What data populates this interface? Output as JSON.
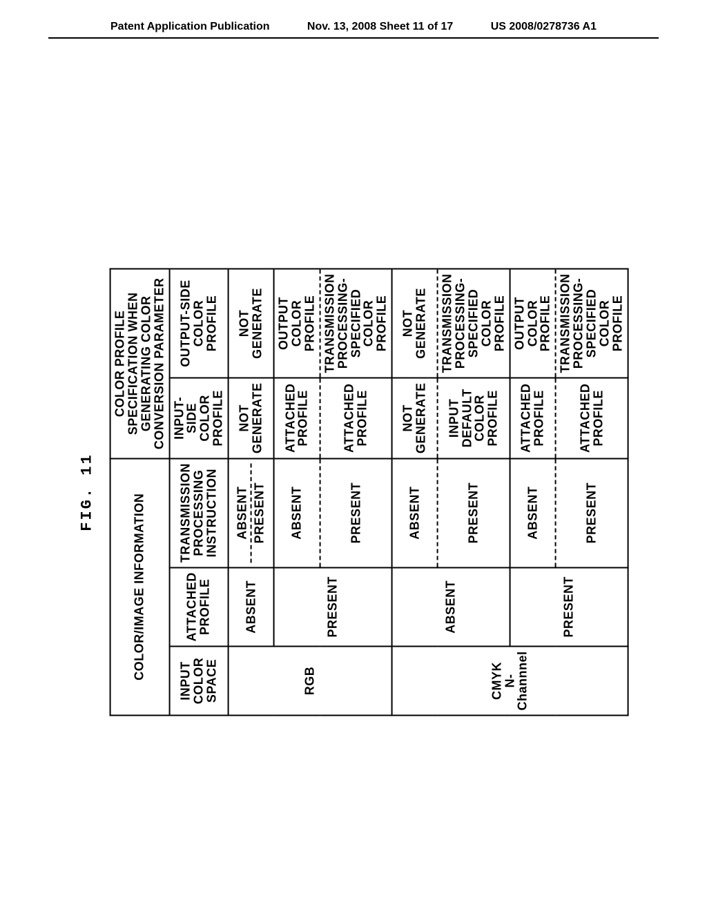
{
  "header": {
    "left": "Patent Application Publication",
    "center": "Nov. 13, 2008  Sheet 11 of 17",
    "right": "US 2008/0278736 A1"
  },
  "figure": {
    "title": "FIG. 11",
    "headers": {
      "group_left": "COLOR/IMAGE INFORMATION",
      "group_right": "COLOR PROFILE\nSPECIFICATION WHEN\nGENERATING COLOR\nCONVERSION PARAMETER",
      "c1": "INPUT COLOR\nSPACE",
      "c2": "ATTACHED\nPROFILE",
      "c3": "TRANSMISSION\nPROCESSING\nINSTRUCTION",
      "c4": "INPUT-SIDE\nCOLOR PROFILE",
      "c5": "OUTPUT-SIDE\nCOLOR PROFILE"
    },
    "blocks": [
      {
        "space": "RGB",
        "groups": [
          {
            "attached": "ABSENT",
            "rows": [
              {
                "trans": "ABSENT",
                "in": "NOT GENERATE",
                "out": "NOT GENERATE",
                "merged_out": false
              },
              {
                "trans": "PRESENT",
                "in": "",
                "out": "",
                "merged_out": true
              }
            ]
          },
          {
            "attached": "PRESENT",
            "rows": [
              {
                "trans": "ABSENT",
                "in": "ATTACHED\nPROFILE",
                "out": "OUTPUT\nCOLOR PROFILE"
              },
              {
                "trans": "PRESENT",
                "in": "ATTACHED\nPROFILE",
                "out": "TRANSMISSION\nPROCESSING-SPECIFIED\nCOLOR PROFILE"
              }
            ]
          }
        ]
      },
      {
        "space": "CMYK\nN-Channnel",
        "groups": [
          {
            "attached": "ABSENT",
            "rows": [
              {
                "trans": "ABSENT",
                "in": "NOT GENERATE",
                "out": "NOT GENERATE"
              },
              {
                "trans": "PRESENT",
                "in": "INPUT DEFAULT\nCOLOR PROFILE",
                "out": "TRANSMISSION\nPROCESSING-SPECIFIED\nCOLOR PROFILE"
              }
            ]
          },
          {
            "attached": "PRESENT",
            "rows": [
              {
                "trans": "ABSENT",
                "in": "ATTACHED\nPROFILE",
                "out": "OUTPUT\nCOLOR PROFILE"
              },
              {
                "trans": "PRESENT",
                "in": "ATTACHED\nPROFILE",
                "out": "TRANSMISSION\nPROCESSING-SPECIFIED\nCOLOR PROFILE"
              }
            ]
          }
        ]
      }
    ]
  }
}
